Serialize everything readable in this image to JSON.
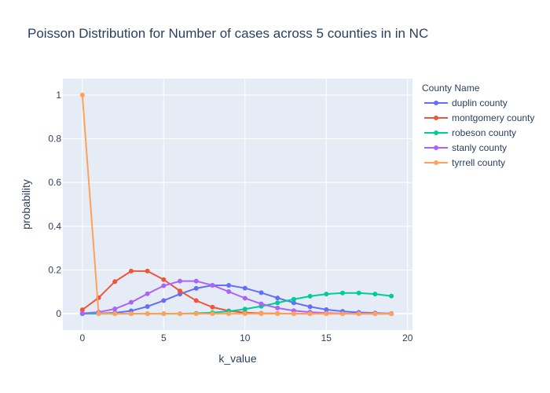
{
  "chart_data": {
    "type": "line",
    "title": "Poisson Distribution for Number of cases across 5 counties in in NC",
    "xlabel": "k_value",
    "ylabel": "probability",
    "xlim": [
      -1.2,
      20.3
    ],
    "ylim": [
      -0.075,
      1.075
    ],
    "x_ticks": [
      0,
      5,
      10,
      15,
      20
    ],
    "y_ticks": [
      0,
      0.2,
      0.4,
      0.6,
      0.8,
      1
    ],
    "y_tick_labels": [
      "0",
      "0.2",
      "0.4",
      "0.6",
      "0.8",
      "1"
    ],
    "grid": true,
    "legend_title": "County Name",
    "legend_position": "right",
    "x": [
      0,
      1,
      2,
      3,
      4,
      5,
      6,
      7,
      8,
      9,
      10,
      11,
      12,
      13,
      14,
      15,
      16,
      17,
      18,
      19
    ],
    "series": [
      {
        "name": "duplin county",
        "color": "#636efa",
        "values": [
          0.0,
          0.001,
          0.004,
          0.013,
          0.033,
          0.06,
          0.09,
          0.116,
          0.13,
          0.13,
          0.117,
          0.096,
          0.072,
          0.05,
          0.032,
          0.019,
          0.011,
          0.006,
          0.003,
          0.001
        ]
      },
      {
        "name": "montgomery county",
        "color": "#ef553b",
        "values": [
          0.018,
          0.073,
          0.147,
          0.195,
          0.195,
          0.156,
          0.104,
          0.06,
          0.03,
          0.013,
          0.005,
          0.002,
          0.001,
          0.0,
          0.0,
          0.0,
          0.0,
          0.0,
          0.0,
          0.0
        ]
      },
      {
        "name": "robeson county",
        "color": "#00cc96",
        "values": [
          0.0,
          0.0,
          0.0,
          0.0,
          0.0,
          0.0,
          0.0,
          0.002,
          0.005,
          0.011,
          0.021,
          0.034,
          0.05,
          0.066,
          0.08,
          0.09,
          0.095,
          0.095,
          0.09,
          0.081
        ]
      },
      {
        "name": "stanly county",
        "color": "#ab63fa",
        "values": [
          0.002,
          0.007,
          0.022,
          0.052,
          0.091,
          0.128,
          0.149,
          0.149,
          0.13,
          0.101,
          0.071,
          0.045,
          0.026,
          0.014,
          0.007,
          0.003,
          0.001,
          0.0,
          0.0,
          0.0
        ]
      },
      {
        "name": "tyrrell county",
        "color": "#ffa15a",
        "values": [
          1.0,
          0.0,
          0.0,
          0.0,
          0.0,
          0.0,
          0.0,
          0.0,
          0.0,
          0.0,
          0.0,
          0.0,
          0.0,
          0.0,
          0.0,
          0.0,
          0.0,
          0.0,
          0.0,
          0.0
        ]
      }
    ]
  },
  "colors": {
    "plot_background": "#e5ecf6",
    "grid": "#ffffff",
    "text": "#2a3f5f"
  }
}
